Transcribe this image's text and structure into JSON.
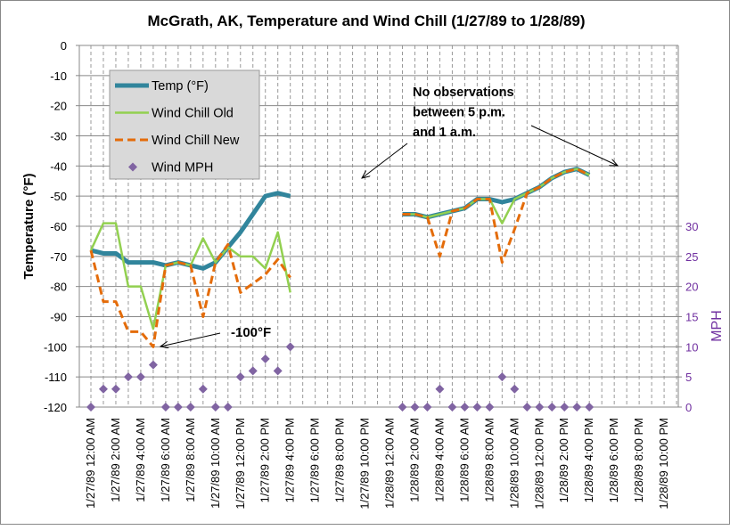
{
  "chart_data": {
    "type": "line",
    "title": "McGrath, AK, Temperature and Wind Chill (1/27/89 to 1/28/89)",
    "ylabel": "Temperature (°F)",
    "y2label": "MPH",
    "ylim": [
      -120,
      0
    ],
    "yticks": [
      0,
      -10,
      -20,
      -30,
      -40,
      -50,
      -60,
      -70,
      -80,
      -90,
      -100,
      -110,
      -120
    ],
    "y2lim": [
      0,
      60
    ],
    "y2ticks": [
      0,
      5,
      10,
      15,
      20,
      25,
      30
    ],
    "grid": true,
    "legend": "top-left",
    "xticklabels": [
      "1/27/89 12:00 AM",
      "1/27/89 2:00 AM",
      "1/27/89 4:00 AM",
      "1/27/89 6:00 AM",
      "1/27/89 8:00 AM",
      "1/27/89 10:00 AM",
      "1/27/89 12:00 PM",
      "1/27/89 2:00 PM",
      "1/27/89 4:00 PM",
      "1/27/89 6:00 PM",
      "1/27/89 8:00 PM",
      "1/27/89 10:00 PM",
      "1/28/89 12:00 AM",
      "1/28/89 2:00 AM",
      "1/28/89 4:00 AM",
      "1/28/89 6:00 AM",
      "1/28/89 8:00 AM",
      "1/28/89 10:00 AM",
      "1/28/89 12:00 PM",
      "1/28/89 2:00 PM",
      "1/28/89 4:00 PM",
      "1/28/89 6:00 PM",
      "1/28/89 8:00 PM",
      "1/28/89 10:00 PM"
    ],
    "hours_note_x": "hourly, 48 categories from 1/27/89 12:00 AM",
    "series": [
      {
        "name": "Temp (°F)",
        "color": "#31859c",
        "axis": "left",
        "style": "thick",
        "x": [
          0,
          1,
          2,
          3,
          4,
          5,
          6,
          7,
          8,
          9,
          10,
          11,
          12,
          13,
          14,
          15,
          16,
          25,
          26,
          27,
          28,
          29,
          30,
          31,
          32,
          33,
          34,
          35,
          36,
          37,
          38,
          39,
          40
        ],
        "values": [
          -68,
          -69,
          -69,
          -72,
          -72,
          -72,
          -73,
          -72,
          -73,
          -74,
          -72,
          -67,
          -62,
          -56,
          -50,
          -49,
          -50,
          -56,
          -56,
          -57,
          -56,
          -55,
          -54,
          -51,
          -51,
          -52,
          -51,
          -49,
          -47,
          -44,
          -42,
          -41,
          -43
        ]
      },
      {
        "name": "Wind Chill Old",
        "color": "#92d050",
        "axis": "left",
        "style": "solid",
        "x": [
          0,
          1,
          2,
          3,
          4,
          5,
          6,
          7,
          8,
          9,
          10,
          11,
          12,
          13,
          14,
          15,
          16,
          25,
          26,
          27,
          28,
          29,
          30,
          31,
          32,
          33,
          34,
          35,
          36,
          37,
          38,
          39,
          40
        ],
        "values": [
          -68,
          -59,
          -59,
          -80,
          -80,
          -94,
          -73,
          -72,
          -73,
          -64,
          -72,
          -67,
          -70,
          -70,
          -74,
          -62,
          -82,
          -56,
          -56,
          -57,
          -56,
          -55,
          -54,
          -51,
          -51,
          -59,
          -51,
          -49,
          -47,
          -44,
          -42,
          -41,
          -43
        ]
      },
      {
        "name": "Wind Chill New",
        "color": "#e46c0a",
        "axis": "left",
        "style": "dashed",
        "x": [
          0,
          1,
          2,
          3,
          4,
          5,
          6,
          7,
          8,
          9,
          10,
          11,
          12,
          13,
          14,
          15,
          16,
          25,
          26,
          27,
          28,
          29,
          30,
          31,
          32,
          33,
          34,
          35,
          36,
          37,
          38,
          39,
          40
        ],
        "values": [
          -68,
          -85,
          -85,
          -95,
          -95,
          -100,
          -73,
          -72,
          -73,
          -90,
          -72,
          -66,
          -82,
          -79,
          -76,
          -71,
          -77,
          -56,
          -56,
          -57,
          -70,
          -55,
          -54,
          -51,
          -51,
          -72,
          -61,
          -49,
          -47,
          -44,
          -42,
          -41,
          -43
        ]
      },
      {
        "name": "Wind MPH",
        "color": "#8064a2",
        "axis": "right",
        "style": "marker",
        "x": [
          0,
          1,
          2,
          3,
          4,
          5,
          6,
          7,
          8,
          9,
          10,
          11,
          12,
          13,
          14,
          15,
          16,
          25,
          26,
          27,
          28,
          29,
          30,
          31,
          32,
          33,
          34,
          35,
          36,
          37,
          38,
          39,
          40
        ],
        "values": [
          0,
          3,
          3,
          5,
          5,
          7,
          0,
          0,
          0,
          3,
          0,
          0,
          5,
          6,
          8,
          6,
          10,
          0,
          0,
          0,
          3,
          0,
          0,
          0,
          0,
          5,
          3,
          0,
          0,
          0,
          0,
          0,
          0
        ]
      }
    ],
    "annotations": [
      {
        "lines": [
          "No observations",
          "between 5 p.m.",
          "and 1 a.m."
        ]
      },
      {
        "lines": [
          "-100°F"
        ]
      }
    ]
  }
}
